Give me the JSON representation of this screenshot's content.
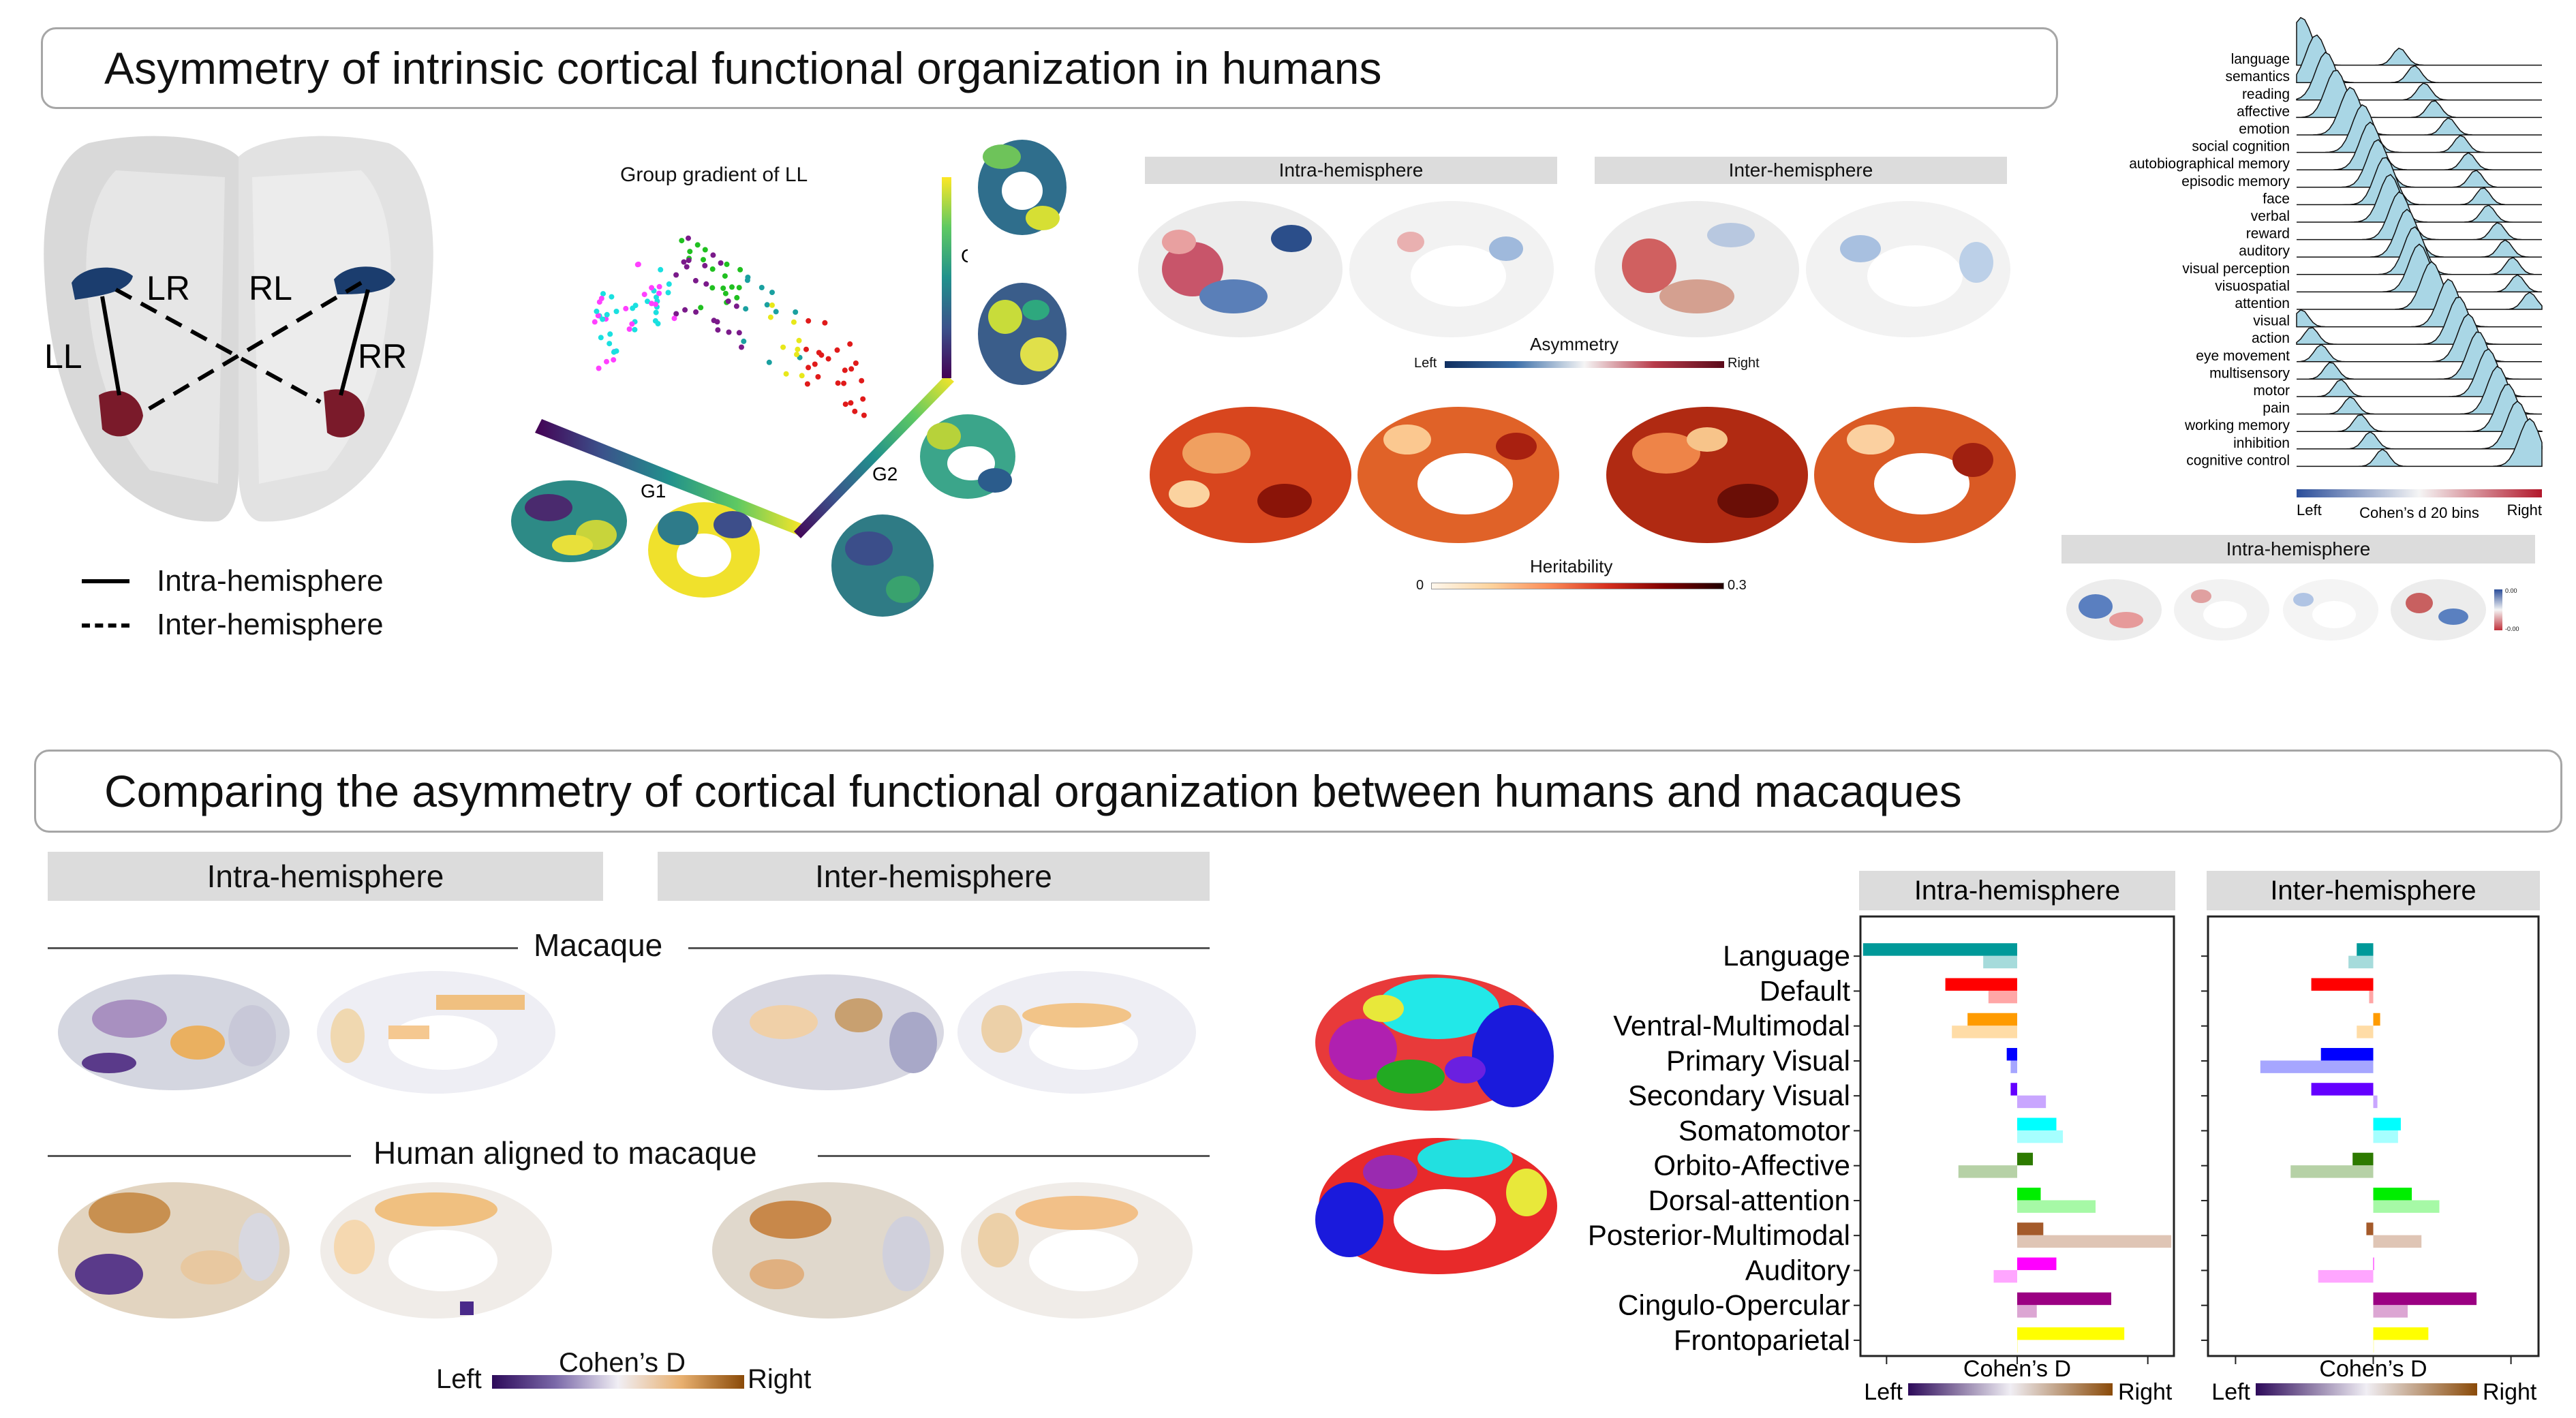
{
  "section1": {
    "title": "Asymmetry of intrinsic cortical functional organization in humans"
  },
  "section2": {
    "title": "Comparing the asymmetry of cortical functional organization between humans and macaques"
  },
  "panel_a": {
    "labels": {
      "ll": "LL",
      "lr": "LR",
      "rl": "RL",
      "rr": "RR"
    },
    "legend": {
      "intra": "Intra-hemisphere",
      "inter": "Inter-hemisphere"
    },
    "colors": {
      "blue_region": "#1b3d6e",
      "red_region": "#7a1a2a"
    }
  },
  "panel_b": {
    "title": "Group gradient of LL",
    "axes": {
      "g1": "G1",
      "g2": "G2",
      "g3": "G3"
    }
  },
  "panel_c": {
    "headers": {
      "intra": "Intra-hemisphere",
      "inter": "Inter-hemisphere"
    },
    "asym_colorbar": {
      "title": "Asymmetry",
      "left": "Left",
      "right": "Right"
    },
    "herit_colorbar": {
      "title": "Heritability",
      "min": "0",
      "max": "0.3"
    }
  },
  "panel_d": {
    "terms": [
      "language",
      "semantics",
      "reading",
      "affective",
      "emotion",
      "social cognition",
      "autobiographical memory",
      "episodic memory",
      "face",
      "verbal",
      "reward",
      "auditory",
      "visual perception",
      "visuospatial",
      "attention",
      "visual",
      "action",
      "eye movement",
      "multisensory",
      "motor",
      "pain",
      "working memory",
      "inhibition",
      "cognitive control"
    ],
    "peaks": [
      0.02,
      0.08,
      0.12,
      0.16,
      0.22,
      0.27,
      0.3,
      0.33,
      0.36,
      0.38,
      0.42,
      0.45,
      0.48,
      0.5,
      0.55,
      0.62,
      0.66,
      0.7,
      0.74,
      0.78,
      0.82,
      0.86,
      0.9,
      0.95
    ],
    "colorbar": {
      "left": "Left",
      "title": "Cohen’s d 20 bins",
      "right": "Right"
    },
    "sub_header": "Intra-hemisphere",
    "sub_ticks": {
      "top": "0.00",
      "bottom": "-0.00"
    }
  },
  "panel_e": {
    "headers": {
      "intra": "Intra-hemisphere",
      "inter": "Inter-hemisphere"
    },
    "row_macaque": "Macaque",
    "row_human": "Human aligned to macaque",
    "colorbar": {
      "left": "Left",
      "title": "Cohen’s D",
      "right": "Right"
    }
  },
  "chart_data": {
    "type": "bar",
    "xlabel": "Cohen’s D",
    "colorbar": {
      "left": "Left",
      "right": "Right"
    },
    "categories": [
      "Language",
      "Default",
      "Ventral-Multimodal",
      "Primary Visual",
      "Secondary Visual",
      "Somatomotor",
      "Orbito-Affective",
      "Dorsal-attention",
      "Posterior-Multimodal",
      "Auditory",
      "Cingulo-Opercular",
      "Frontoparietal"
    ],
    "network_colors": [
      "#009999",
      "#ff0000",
      "#ff9b00",
      "#0000ff",
      "#6400ff",
      "#00ffff",
      "#2d7a00",
      "#00ee00",
      "#a45a2a",
      "#ff00ff",
      "#9b0082",
      "#ffff00"
    ],
    "panels": [
      {
        "title": "Intra-hemisphere",
        "xlim": [
          -1.2,
          1.2
        ],
        "series": [
          {
            "name": "Macaque",
            "values": [
              -1.18,
              -0.55,
              -0.38,
              -0.08,
              -0.05,
              0.3,
              0.12,
              0.18,
              0.2,
              0.3,
              0.72,
              0.82
            ]
          },
          {
            "name": "Human",
            "values": [
              -0.26,
              -0.22,
              -0.5,
              -0.05,
              0.22,
              0.35,
              -0.45,
              0.6,
              1.18,
              -0.18,
              0.15,
              0.0
            ]
          }
        ]
      },
      {
        "title": "Inter-hemisphere",
        "xlim": [
          -1.2,
          1.2
        ],
        "series": [
          {
            "name": "Macaque",
            "values": [
              -0.12,
              -0.45,
              0.05,
              -0.38,
              -0.45,
              0.2,
              -0.15,
              0.28,
              -0.05,
              0.0,
              0.75,
              0.4
            ]
          },
          {
            "name": "Human",
            "values": [
              -0.18,
              -0.03,
              -0.12,
              -0.82,
              0.03,
              0.18,
              -0.6,
              0.48,
              0.35,
              -0.4,
              0.25,
              0.0
            ]
          }
        ]
      }
    ]
  }
}
